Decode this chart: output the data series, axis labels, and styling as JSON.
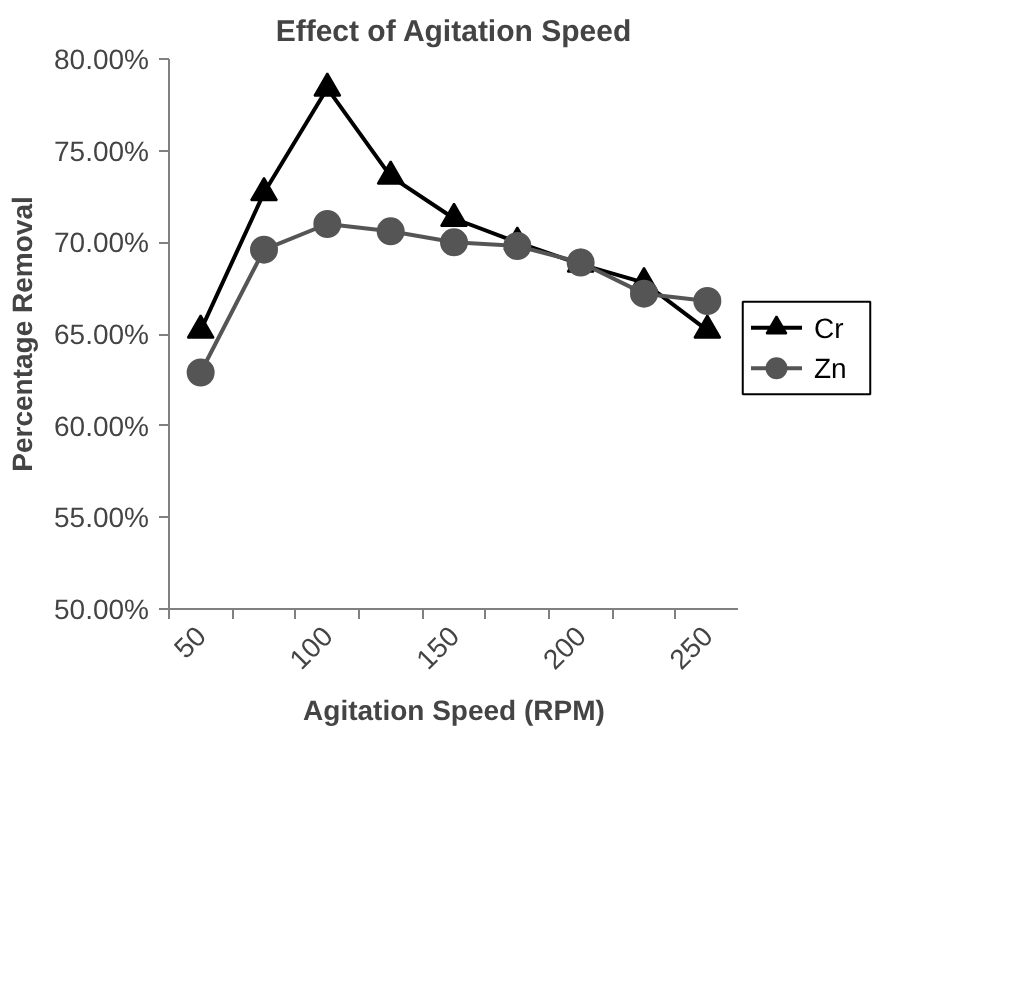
{
  "chart_data": {
    "type": "line",
    "title": "Effect of Agitation Speed",
    "xlabel": "Agitation Speed (RPM)",
    "ylabel": "Percentage Removal",
    "categories": [
      "50",
      null,
      "100",
      null,
      "150",
      null,
      "200",
      null,
      "250"
    ],
    "series": [
      {
        "name": "Cr",
        "color": "#000000",
        "marker": "triangle",
        "values": [
          65.2,
          72.7,
          78.4,
          73.6,
          71.3,
          70.0,
          68.8,
          67.8,
          65.2
        ]
      },
      {
        "name": "Zn",
        "color": "#555555",
        "marker": "circle",
        "values": [
          62.9,
          69.6,
          71.0,
          70.6,
          70.0,
          69.8,
          68.9,
          67.2,
          66.8
        ]
      }
    ],
    "ylim": [
      50,
      80
    ],
    "yticks": [
      {
        "value": 50,
        "label": "50.00%"
      },
      {
        "value": 55,
        "label": "55.00%"
      },
      {
        "value": 60,
        "label": "60.00%"
      },
      {
        "value": 65,
        "label": "65.00%"
      },
      {
        "value": 70,
        "label": "70.00%"
      },
      {
        "value": 75,
        "label": "75.00%"
      },
      {
        "value": 80,
        "label": "80.00%"
      }
    ],
    "legend": "right",
    "line_style": "solid"
  }
}
